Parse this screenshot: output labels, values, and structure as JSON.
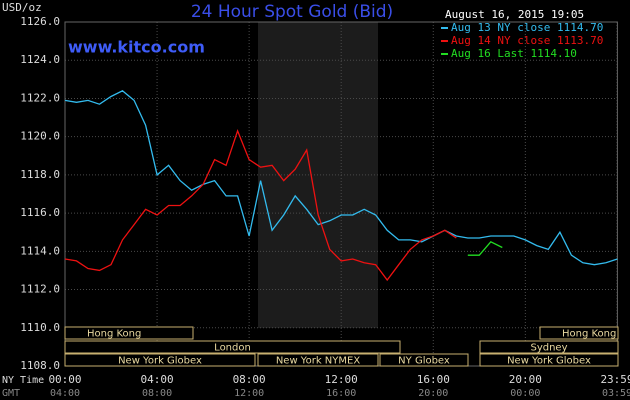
{
  "chart_data": {
    "type": "line",
    "title": "24 Hour Spot Gold (Bid)",
    "subtitle": "www.kitco.com",
    "timestamp": "August 16, 2015 19:05",
    "y_label": "USD/oz",
    "x_label": "NY Time",
    "x2_label": "GMT",
    "x": [
      0,
      0.5,
      1,
      1.5,
      2,
      2.5,
      3,
      3.5,
      4,
      4.5,
      5,
      5.5,
      6,
      6.5,
      7,
      7.5,
      8,
      8.5,
      9,
      9.5,
      10,
      10.5,
      11,
      11.5,
      12,
      12.5,
      13,
      13.5,
      14,
      14.5,
      15,
      15.5,
      16,
      16.5,
      17,
      17.5,
      18,
      18.5,
      19,
      19.5,
      20,
      20.5,
      21,
      21.5,
      22,
      22.5,
      23,
      23.5,
      24
    ],
    "series": [
      {
        "name": "Aug 13 NY close 1114.70",
        "color": "#33bbee",
        "values": [
          1121.9,
          1121.8,
          1121.9,
          1121.7,
          1122.1,
          1122.4,
          1121.9,
          1120.6,
          1118.0,
          1118.5,
          1117.7,
          1117.2,
          1117.5,
          1117.7,
          1116.9,
          1116.9,
          1114.8,
          1117.7,
          1115.1,
          1115.9,
          1116.9,
          1116.2,
          1115.4,
          1115.6,
          1115.9,
          1115.9,
          1116.2,
          1115.9,
          1115.1,
          1114.6,
          1114.6,
          1114.5,
          1114.8,
          1115.1,
          1114.8,
          1114.7,
          1114.7,
          1114.8,
          1114.8,
          1114.8,
          1114.6,
          1114.3,
          1114.1,
          1115.0,
          1113.8,
          1113.4,
          1113.3,
          1113.4,
          1113.6
        ]
      },
      {
        "name": "Aug 14 NY close 1113.70",
        "color": "#ee1111",
        "values": [
          1113.6,
          1113.5,
          1113.1,
          1113.0,
          1113.3,
          1114.6,
          1115.4,
          1116.2,
          1115.9,
          1116.4,
          1116.4,
          1116.9,
          1117.5,
          1118.8,
          1118.5,
          1120.3,
          1118.8,
          1118.4,
          1118.5,
          1117.7,
          1118.3,
          1119.3,
          1115.9,
          1114.1,
          1113.5,
          1113.6,
          1113.4,
          1113.3,
          1112.5,
          1113.3,
          1114.1,
          1114.6,
          1114.8,
          1115.1,
          1114.7,
          null,
          null,
          null,
          null,
          null,
          null,
          null,
          null,
          null,
          null,
          null,
          null,
          null,
          null
        ]
      },
      {
        "name": "Aug 16 Last 1114.10",
        "color": "#22dd22",
        "values": [
          null,
          null,
          null,
          null,
          null,
          null,
          null,
          null,
          null,
          null,
          null,
          null,
          null,
          null,
          null,
          null,
          null,
          null,
          null,
          null,
          null,
          null,
          null,
          null,
          null,
          null,
          null,
          null,
          null,
          null,
          null,
          null,
          null,
          null,
          null,
          1113.8,
          1113.8,
          1114.5,
          1114.2,
          null,
          null,
          null,
          null,
          null,
          null,
          null,
          null,
          null,
          null
        ]
      }
    ],
    "xlim": [
      0,
      24
    ],
    "xticks": [
      {
        "value": 0,
        "label": "00:00"
      },
      {
        "value": 4,
        "label": "04:00"
      },
      {
        "value": 8,
        "label": "08:00"
      },
      {
        "value": 12,
        "label": "12:00"
      },
      {
        "value": 16,
        "label": "16:00"
      },
      {
        "value": 20,
        "label": "20:00"
      },
      {
        "value": 23.983,
        "label": "23:59"
      }
    ],
    "x2ticks": [
      "04:00",
      "08:00",
      "12:00",
      "16:00",
      "20:00",
      "00:00",
      "03:59"
    ],
    "ylim": [
      1108,
      1126
    ],
    "yticks": [
      {
        "value": 1108,
        "label": "1108.0"
      },
      {
        "value": 1110,
        "label": "1110.0"
      },
      {
        "value": 1112,
        "label": "1112.0"
      },
      {
        "value": 1114,
        "label": "1114.0"
      },
      {
        "value": 1116,
        "label": "1116.0"
      },
      {
        "value": 1118,
        "label": "1118.0"
      },
      {
        "value": 1120,
        "label": "1120.0"
      },
      {
        "value": 1122,
        "label": "1122.0"
      },
      {
        "value": 1124,
        "label": "1124.0"
      },
      {
        "value": 1126,
        "label": "1126.0"
      }
    ],
    "grid": true,
    "sessions": [
      "Hong Kong",
      "London",
      "New York Globex",
      "New York NYMEX",
      "NY Globex",
      "Sydney",
      "Hong Kong",
      "New York Globex"
    ]
  }
}
